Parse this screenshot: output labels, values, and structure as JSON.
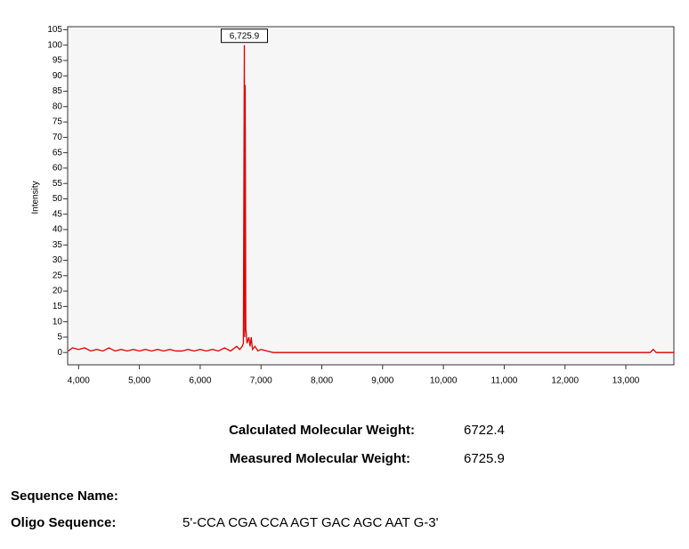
{
  "chart_data": {
    "type": "line",
    "y_label": "Intensity",
    "x": [
      3830,
      3900,
      4000,
      4100,
      4200,
      4300,
      4400,
      4500,
      4600,
      4700,
      4800,
      4900,
      5000,
      5100,
      5200,
      5300,
      5400,
      5500,
      5600,
      5700,
      5800,
      5900,
      6000,
      6100,
      6200,
      6300,
      6400,
      6500,
      6600,
      6650,
      6690,
      6710,
      6725.9,
      6732,
      6740,
      6750,
      6770,
      6800,
      6820,
      6840,
      6860,
      6900,
      6950,
      7000,
      7100,
      7200,
      13400,
      13450,
      13500,
      13790
    ],
    "values": [
      0.5,
      1.5,
      1,
      1.5,
      0.5,
      1,
      0.5,
      1.5,
      0.5,
      1,
      0.5,
      1,
      0.5,
      1,
      0.5,
      1,
      0.5,
      1,
      0.5,
      0.5,
      1,
      0.5,
      1,
      0.5,
      1,
      0.5,
      1.5,
      0.5,
      2,
      1,
      2,
      3,
      100,
      5,
      87,
      8,
      3,
      5,
      2,
      5,
      1,
      2,
      0.5,
      1,
      0.5,
      0,
      0,
      1,
      0,
      0
    ],
    "color": "#e00000",
    "xlim": [
      3820,
      13790
    ],
    "ylim": [
      -4,
      106
    ],
    "xticks": [
      {
        "value": 4000,
        "label": "4,000"
      },
      {
        "value": 5000,
        "label": "5,000"
      },
      {
        "value": 6000,
        "label": "6,000"
      },
      {
        "value": 7000,
        "label": "7,000"
      },
      {
        "value": 8000,
        "label": "8,000"
      },
      {
        "value": 9000,
        "label": "9,000"
      },
      {
        "value": 10000,
        "label": "10,000"
      },
      {
        "value": 11000,
        "label": "11,000"
      },
      {
        "value": 12000,
        "label": "12,000"
      },
      {
        "value": 13000,
        "label": "13,000"
      }
    ],
    "yticks": [
      0,
      5,
      10,
      15,
      20,
      25,
      30,
      35,
      40,
      45,
      50,
      55,
      60,
      65,
      70,
      75,
      80,
      85,
      90,
      95,
      100,
      105
    ],
    "annotations": [
      {
        "x": 6725.9,
        "y": 100,
        "label": "6,725.9"
      }
    ]
  },
  "results": {
    "calculated_label": "Calculated Molecular Weight:",
    "calculated_value": "6722.4",
    "measured_label": "Measured Molecular Weight:",
    "measured_value": "6725.9",
    "sequence_name_label": "Sequence Name:",
    "oligo_label": "Oligo Sequence:",
    "oligo_value": "5'-CCA CGA CCA AGT GAC AGC AAT G-3'"
  }
}
